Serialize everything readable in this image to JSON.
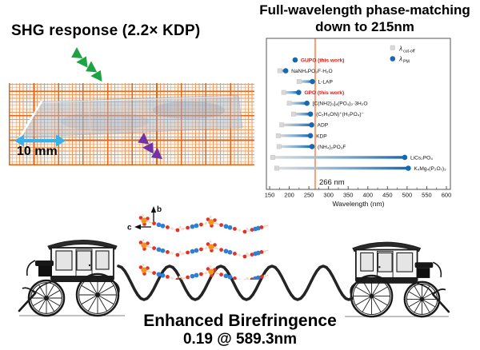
{
  "left_panel": {
    "title": "SHG response (2.2× KDP)",
    "scale_label": "10 mm",
    "icons": {
      "incident_wave": "green-zigzag-wave-arrow",
      "shg_output_wave": "purple-zigzag-wave-arrow",
      "scale_bar": "cyan-double-headed-arrow"
    },
    "photo_description": "transparent crystal on orange millimeter graph paper"
  },
  "chart_data": {
    "type": "scatter",
    "title": "Full-wavelength phase-matching down to 215nm",
    "title_line1": "Full-wavelength phase-matching",
    "title_line2": "down to 215nm",
    "xlabel": "Wavelength (nm)",
    "xlim": [
      143,
      607
    ],
    "xticks": [
      150,
      200,
      250,
      300,
      350,
      400,
      450,
      500,
      550,
      600
    ],
    "vline": {
      "value": 266,
      "label": "266 nm"
    },
    "legend": [
      {
        "symbol": "square",
        "label": "λ",
        "sub": "cut-off"
      },
      {
        "symbol": "circle",
        "label": "λ",
        "sub": "PM"
      }
    ],
    "legend_position": "upper right",
    "rows": [
      {
        "name": "GUPO (this work)",
        "cutoff": 215,
        "pm": 215,
        "highlight": true
      },
      {
        "name": "NaNH₄PO₃F·H₂O",
        "cutoff": 176,
        "pm": 191,
        "highlight": false
      },
      {
        "name": "L-LAP",
        "cutoff": 225,
        "pm": 259,
        "highlight": false
      },
      {
        "name": "GPO (this work)",
        "cutoff": 186,
        "pm": 224,
        "highlight": true
      },
      {
        "name": "[C(NH2)₃]₆(PO₄)₂·3H₂O",
        "cutoff": 200,
        "pm": 245,
        "highlight": false
      },
      {
        "name": "(C₅H₆ON)⁺(H₂PO₄)⁻",
        "cutoff": 211,
        "pm": 254,
        "highlight": false
      },
      {
        "name": "ADP",
        "cutoff": 181,
        "pm": 257,
        "highlight": false
      },
      {
        "name": "KDP",
        "cutoff": 172,
        "pm": 254,
        "highlight": false
      },
      {
        "name": "(NH₄)₂PO₃F",
        "cutoff": 174,
        "pm": 258,
        "highlight": false
      },
      {
        "name": "LiCs₂PO₄",
        "cutoff": 158,
        "pm": 494,
        "highlight": false
      },
      {
        "name": "K₄Mg₄(P₂O₇)₃",
        "cutoff": 168,
        "pm": 503,
        "highlight": false
      }
    ]
  },
  "bottom": {
    "caption_line1": "Enhanced Birefringence",
    "caption_line2": "0.19 @ 589.3nm",
    "axis_b": "b",
    "axis_c": "c",
    "illustrations": [
      "carriage-left",
      "sine-wave",
      "crystal-structure",
      "carriage-right"
    ]
  },
  "colors": {
    "pm_blue": "#1668b0",
    "cutoff_gray": "#d8d8d8",
    "vline_orange": "#f2a47c",
    "highlight_red": "#e8130c",
    "wave_green": "#1ca344",
    "wave_purple": "#7233a6",
    "scale_cyan": "#37b1e7",
    "grid_minor": "#ec9c63",
    "grid_major": "#e2671d",
    "paper_bg": "#f7f4ec",
    "atom_p": "#f59320",
    "atom_o": "#e23128",
    "atom_n": "#2f80d2",
    "atom_h": "#eadfd2",
    "bond": "#f5bd92",
    "ink": "#1a1a1a"
  }
}
